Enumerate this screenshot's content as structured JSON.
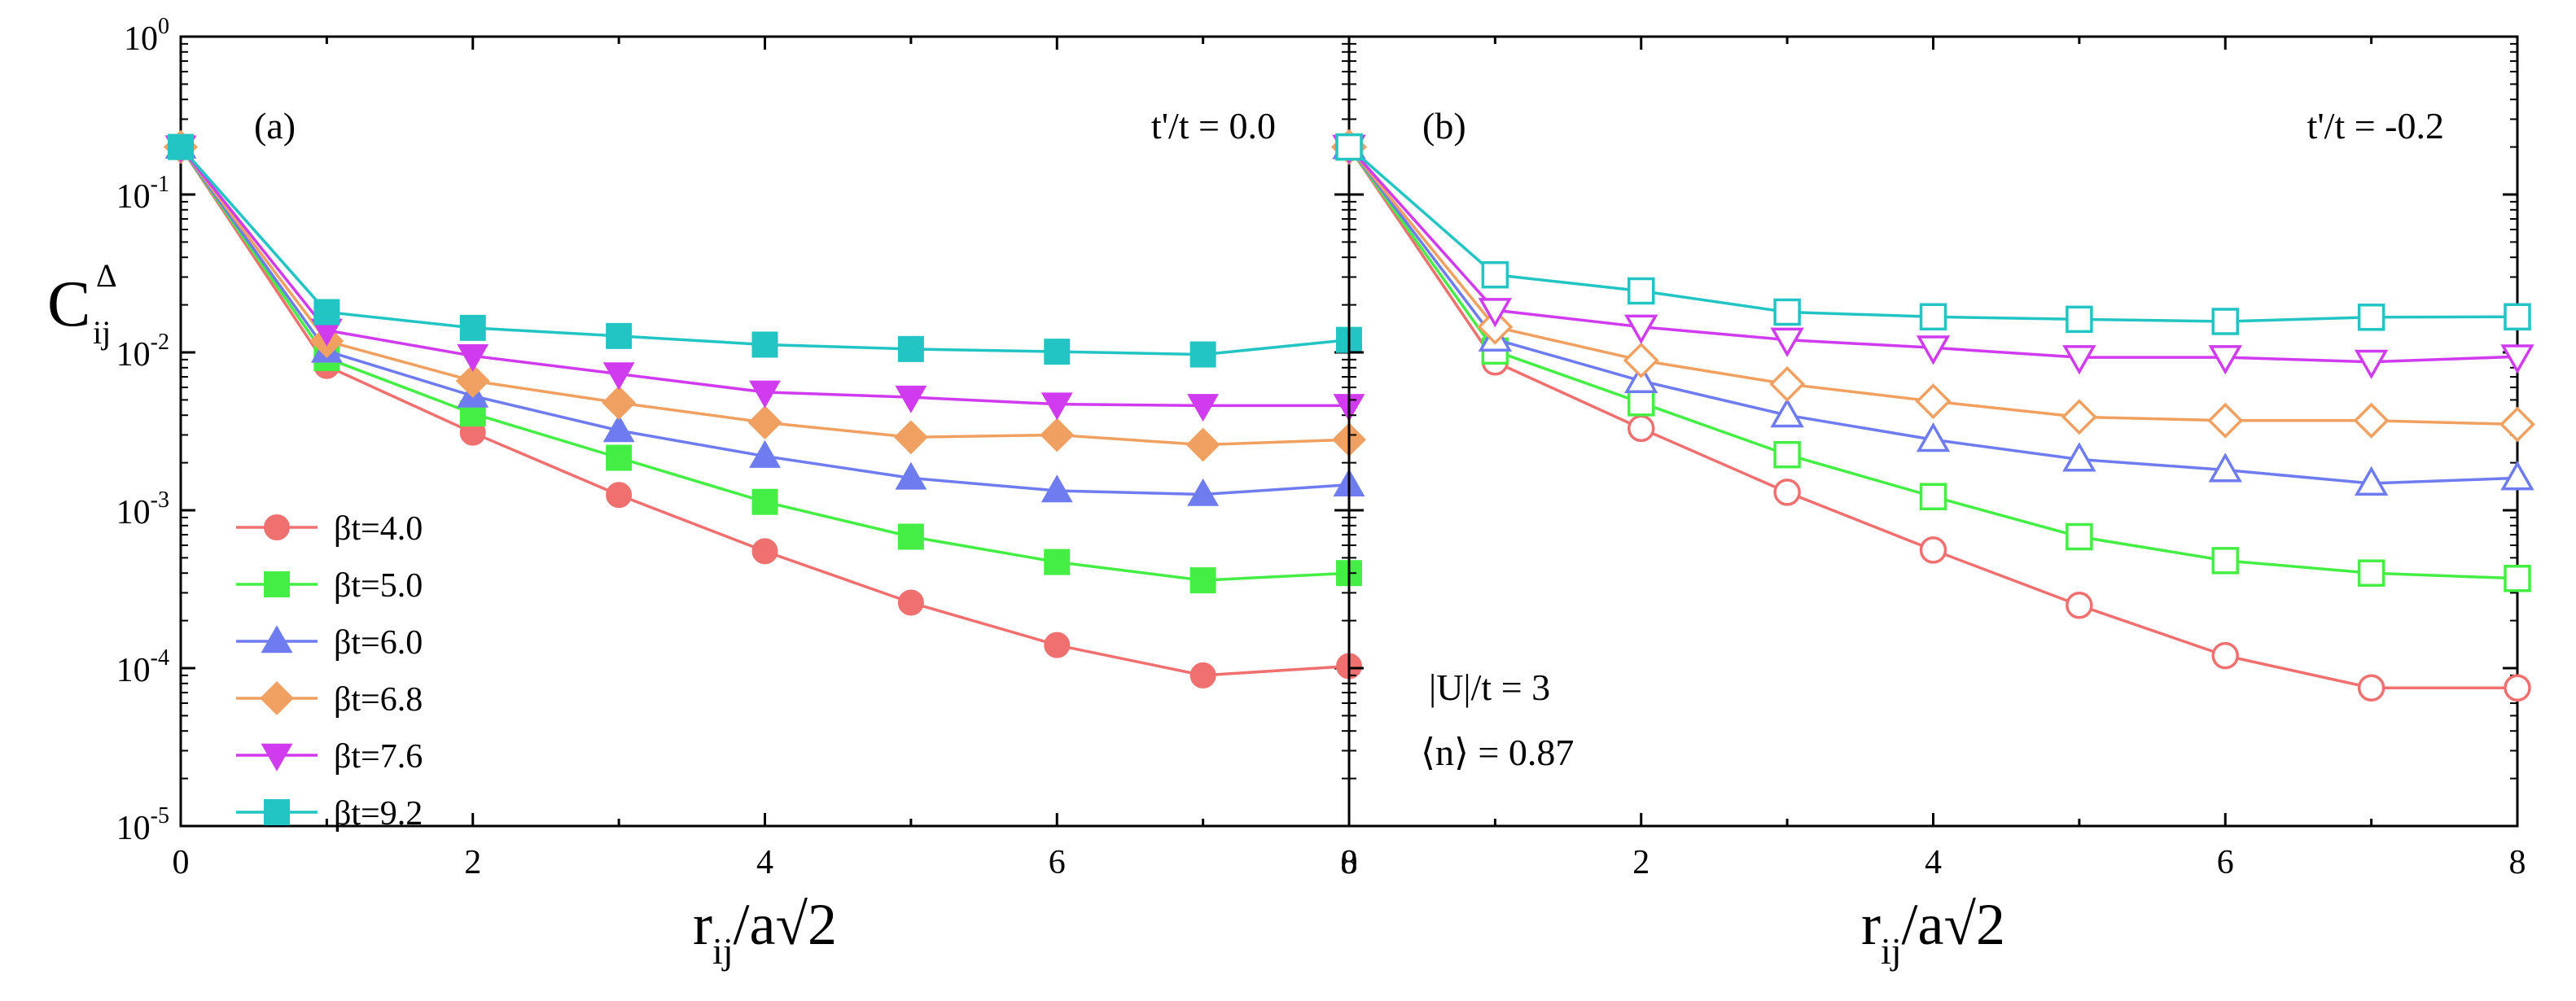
{
  "chart_data": [
    {
      "type": "line",
      "panel_label": "(a)",
      "annotation": "t'/t = 0.0",
      "xlabel_main": "r",
      "xlabel_sub": "ij",
      "xlabel_tail": "/a√2",
      "ylabel_main": "C",
      "ylabel_sup": "Δ",
      "ylabel_sub": "ij",
      "yscale": "log",
      "ylim": [
        1e-05,
        1
      ],
      "xlim": [
        0,
        8
      ],
      "x_ticks": [
        "0",
        "2",
        "4",
        "6",
        "8"
      ],
      "y_ticks": [
        {
          "mant": "10",
          "exp": "-5"
        },
        {
          "mant": "10",
          "exp": "-4"
        },
        {
          "mant": "10",
          "exp": "-3"
        },
        {
          "mant": "10",
          "exp": "-2"
        },
        {
          "mant": "10",
          "exp": "-1"
        },
        {
          "mant": "10",
          "exp": "0"
        }
      ],
      "marker_fill": "filled",
      "x": [
        0,
        1,
        2,
        3,
        4,
        5,
        6,
        7,
        8
      ],
      "series": [
        {
          "name": "βt=4.0",
          "color": "#F07070",
          "marker": "circle",
          "values": [
            0.2,
            0.0082,
            0.0031,
            0.00125,
            0.00055,
            0.00026,
            0.00014,
            9e-05,
            0.000103
          ]
        },
        {
          "name": "βt=5.0",
          "color": "#44EE44",
          "marker": "square",
          "values": [
            0.2,
            0.0092,
            0.0041,
            0.00215,
            0.00113,
            0.00068,
            0.00047,
            0.00036,
            0.0004
          ]
        },
        {
          "name": "βt=6.0",
          "color": "#6E7CF0",
          "marker": "triangle-up",
          "values": [
            0.2,
            0.0102,
            0.0053,
            0.0032,
            0.0022,
            0.0016,
            0.00133,
            0.00126,
            0.00145
          ]
        },
        {
          "name": "βt=6.8",
          "color": "#F0A060",
          "marker": "diamond",
          "values": [
            0.2,
            0.0118,
            0.0066,
            0.0048,
            0.0036,
            0.0029,
            0.003,
            0.0026,
            0.0028
          ]
        },
        {
          "name": "βt=7.6",
          "color": "#D03BF0",
          "marker": "triangle-down",
          "values": [
            0.2,
            0.0138,
            0.0095,
            0.0073,
            0.0056,
            0.0052,
            0.0047,
            0.0046,
            0.0046
          ]
        },
        {
          "name": "βt=9.2",
          "color": "#22C4C4",
          "marker": "square",
          "values": [
            0.2,
            0.018,
            0.0143,
            0.0127,
            0.0112,
            0.0105,
            0.0101,
            0.0097,
            0.012
          ]
        }
      ]
    },
    {
      "type": "line",
      "panel_label": "(b)",
      "annotation": "t'/t = -0.2",
      "text_u": "|U|/t = 3",
      "text_n": "⟨n⟩ = 0.87",
      "xlabel_main": "r",
      "xlabel_sub": "ij",
      "xlabel_tail": "/a√2",
      "yscale": "log",
      "ylim": [
        1e-05,
        1
      ],
      "xlim": [
        0,
        8
      ],
      "x_ticks": [
        "0",
        "2",
        "4",
        "6",
        "8"
      ],
      "marker_fill": "open",
      "x": [
        0,
        1,
        2,
        3,
        4,
        5,
        6,
        7,
        8
      ],
      "series": [
        {
          "name": "βt=4.0",
          "color": "#F07070",
          "marker": "circle",
          "values": [
            0.2,
            0.0087,
            0.0033,
            0.0013,
            0.00056,
            0.00025,
            0.00012,
            7.5e-05,
            7.5e-05
          ]
        },
        {
          "name": "βt=5.0",
          "color": "#44EE44",
          "marker": "square",
          "values": [
            0.2,
            0.0102,
            0.0048,
            0.00225,
            0.00122,
            0.00068,
            0.00048,
            0.0004,
            0.00037
          ]
        },
        {
          "name": "βt=6.0",
          "color": "#6E7CF0",
          "marker": "triangle-up",
          "values": [
            0.2,
            0.0121,
            0.0066,
            0.004,
            0.0028,
            0.0021,
            0.0018,
            0.00148,
            0.0016
          ]
        },
        {
          "name": "βt=6.8",
          "color": "#F0A060",
          "marker": "diamond",
          "values": [
            0.2,
            0.0145,
            0.0089,
            0.0063,
            0.0049,
            0.0039,
            0.0037,
            0.0037,
            0.0035
          ]
        },
        {
          "name": "βt=7.6",
          "color": "#D03BF0",
          "marker": "triangle-down",
          "values": [
            0.2,
            0.0185,
            0.0145,
            0.012,
            0.0107,
            0.0093,
            0.0093,
            0.0087,
            0.0094
          ]
        },
        {
          "name": "βt=9.2",
          "color": "#22C4C4",
          "marker": "square",
          "values": [
            0.2,
            0.031,
            0.0245,
            0.018,
            0.0168,
            0.0162,
            0.0157,
            0.0167,
            0.0168
          ]
        }
      ]
    }
  ]
}
